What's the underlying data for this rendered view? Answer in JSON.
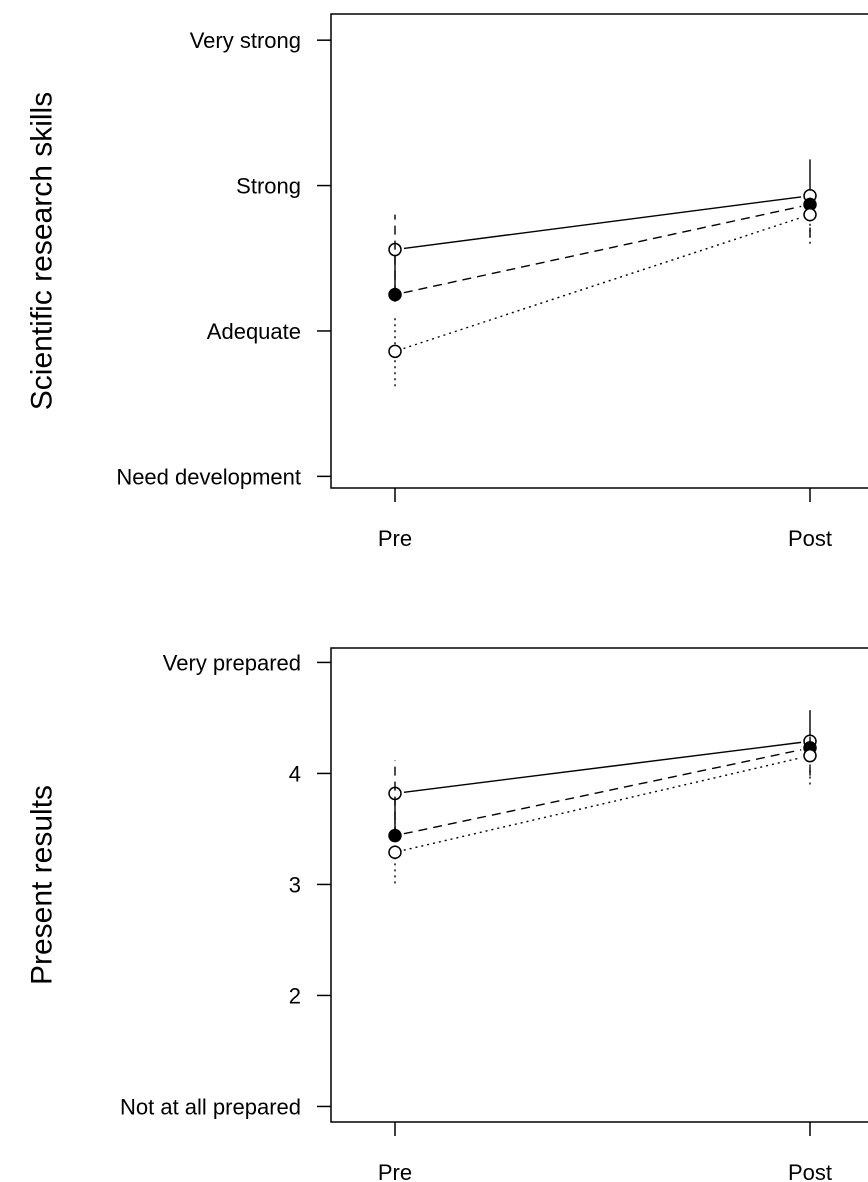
{
  "chart_data": [
    {
      "type": "line",
      "ylabel": "Scientific research skills",
      "categories": [
        "Pre",
        "Post"
      ],
      "y_ticks": [
        {
          "value": 1,
          "label": "Need development"
        },
        {
          "value": 2,
          "label": "Adequate"
        },
        {
          "value": 3,
          "label": "Strong"
        },
        {
          "value": 4,
          "label": "Very strong"
        }
      ],
      "ylim": [
        0.92,
        4.18
      ],
      "grid": false,
      "series": [
        {
          "line_style": "solid",
          "marker": "open-circle",
          "values": [
            2.56,
            2.93
          ],
          "error_bars": [
            [
              2.2,
              2.56
            ],
            [
              2.93,
              3.18
            ]
          ]
        },
        {
          "line_style": "dashed",
          "marker": "filled-circle",
          "values": [
            2.25,
            2.87
          ],
          "error_bars": [
            [
              2.25,
              2.8
            ],
            [
              2.65,
              2.95
            ]
          ]
        },
        {
          "line_style": "dotted",
          "marker": "open-circle",
          "values": [
            1.86,
            2.8
          ],
          "error_bars": [
            [
              1.62,
              2.1
            ],
            [
              2.6,
              2.85
            ]
          ]
        }
      ]
    },
    {
      "type": "line",
      "ylabel": "Present results",
      "categories": [
        "Pre",
        "Post"
      ],
      "y_ticks": [
        {
          "value": 1,
          "label": "Not at all prepared"
        },
        {
          "value": 2,
          "label": "2"
        },
        {
          "value": 3,
          "label": "3"
        },
        {
          "value": 4,
          "label": "4"
        },
        {
          "value": 5,
          "label": "Very prepared"
        }
      ],
      "ylim": [
        0.86,
        5.13
      ],
      "grid": false,
      "series": [
        {
          "line_style": "solid",
          "marker": "open-circle",
          "values": [
            3.82,
            4.29
          ],
          "error_bars": [
            [
              3.5,
              3.82
            ],
            [
              4.29,
              4.57
            ]
          ]
        },
        {
          "line_style": "dashed",
          "marker": "filled-circle",
          "values": [
            3.44,
            4.23
          ],
          "error_bars": [
            [
              3.44,
              4.12
            ],
            [
              3.98,
              4.35
            ]
          ]
        },
        {
          "line_style": "dotted",
          "marker": "open-circle",
          "values": [
            3.29,
            4.16
          ],
          "error_bars": [
            [
              3.01,
              3.56
            ],
            [
              3.9,
              4.3
            ]
          ]
        }
      ]
    }
  ]
}
